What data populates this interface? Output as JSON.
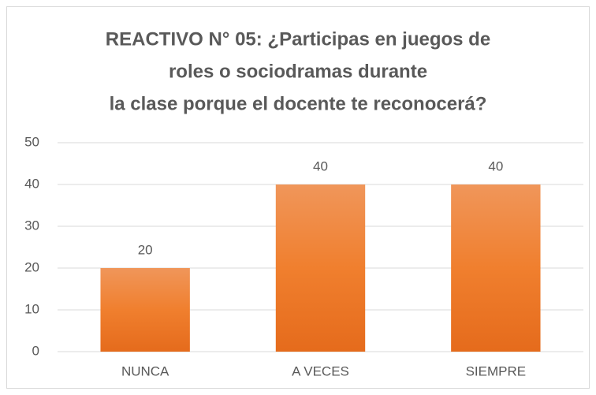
{
  "chart_data": {
    "type": "bar",
    "title": [
      "REACTIVO N° 05: ¿Participas en juegos de",
      "roles o sociodramas durante",
      "la clase porque el docente te reconocerá?"
    ],
    "categories": [
      "NUNCA",
      "A VECES",
      "SIEMPRE"
    ],
    "values": [
      20,
      40,
      40
    ],
    "color": "#ed7d31",
    "ylim": [
      0,
      50
    ],
    "yticks": [
      0,
      10,
      20,
      30,
      40,
      50
    ],
    "grid": true
  }
}
